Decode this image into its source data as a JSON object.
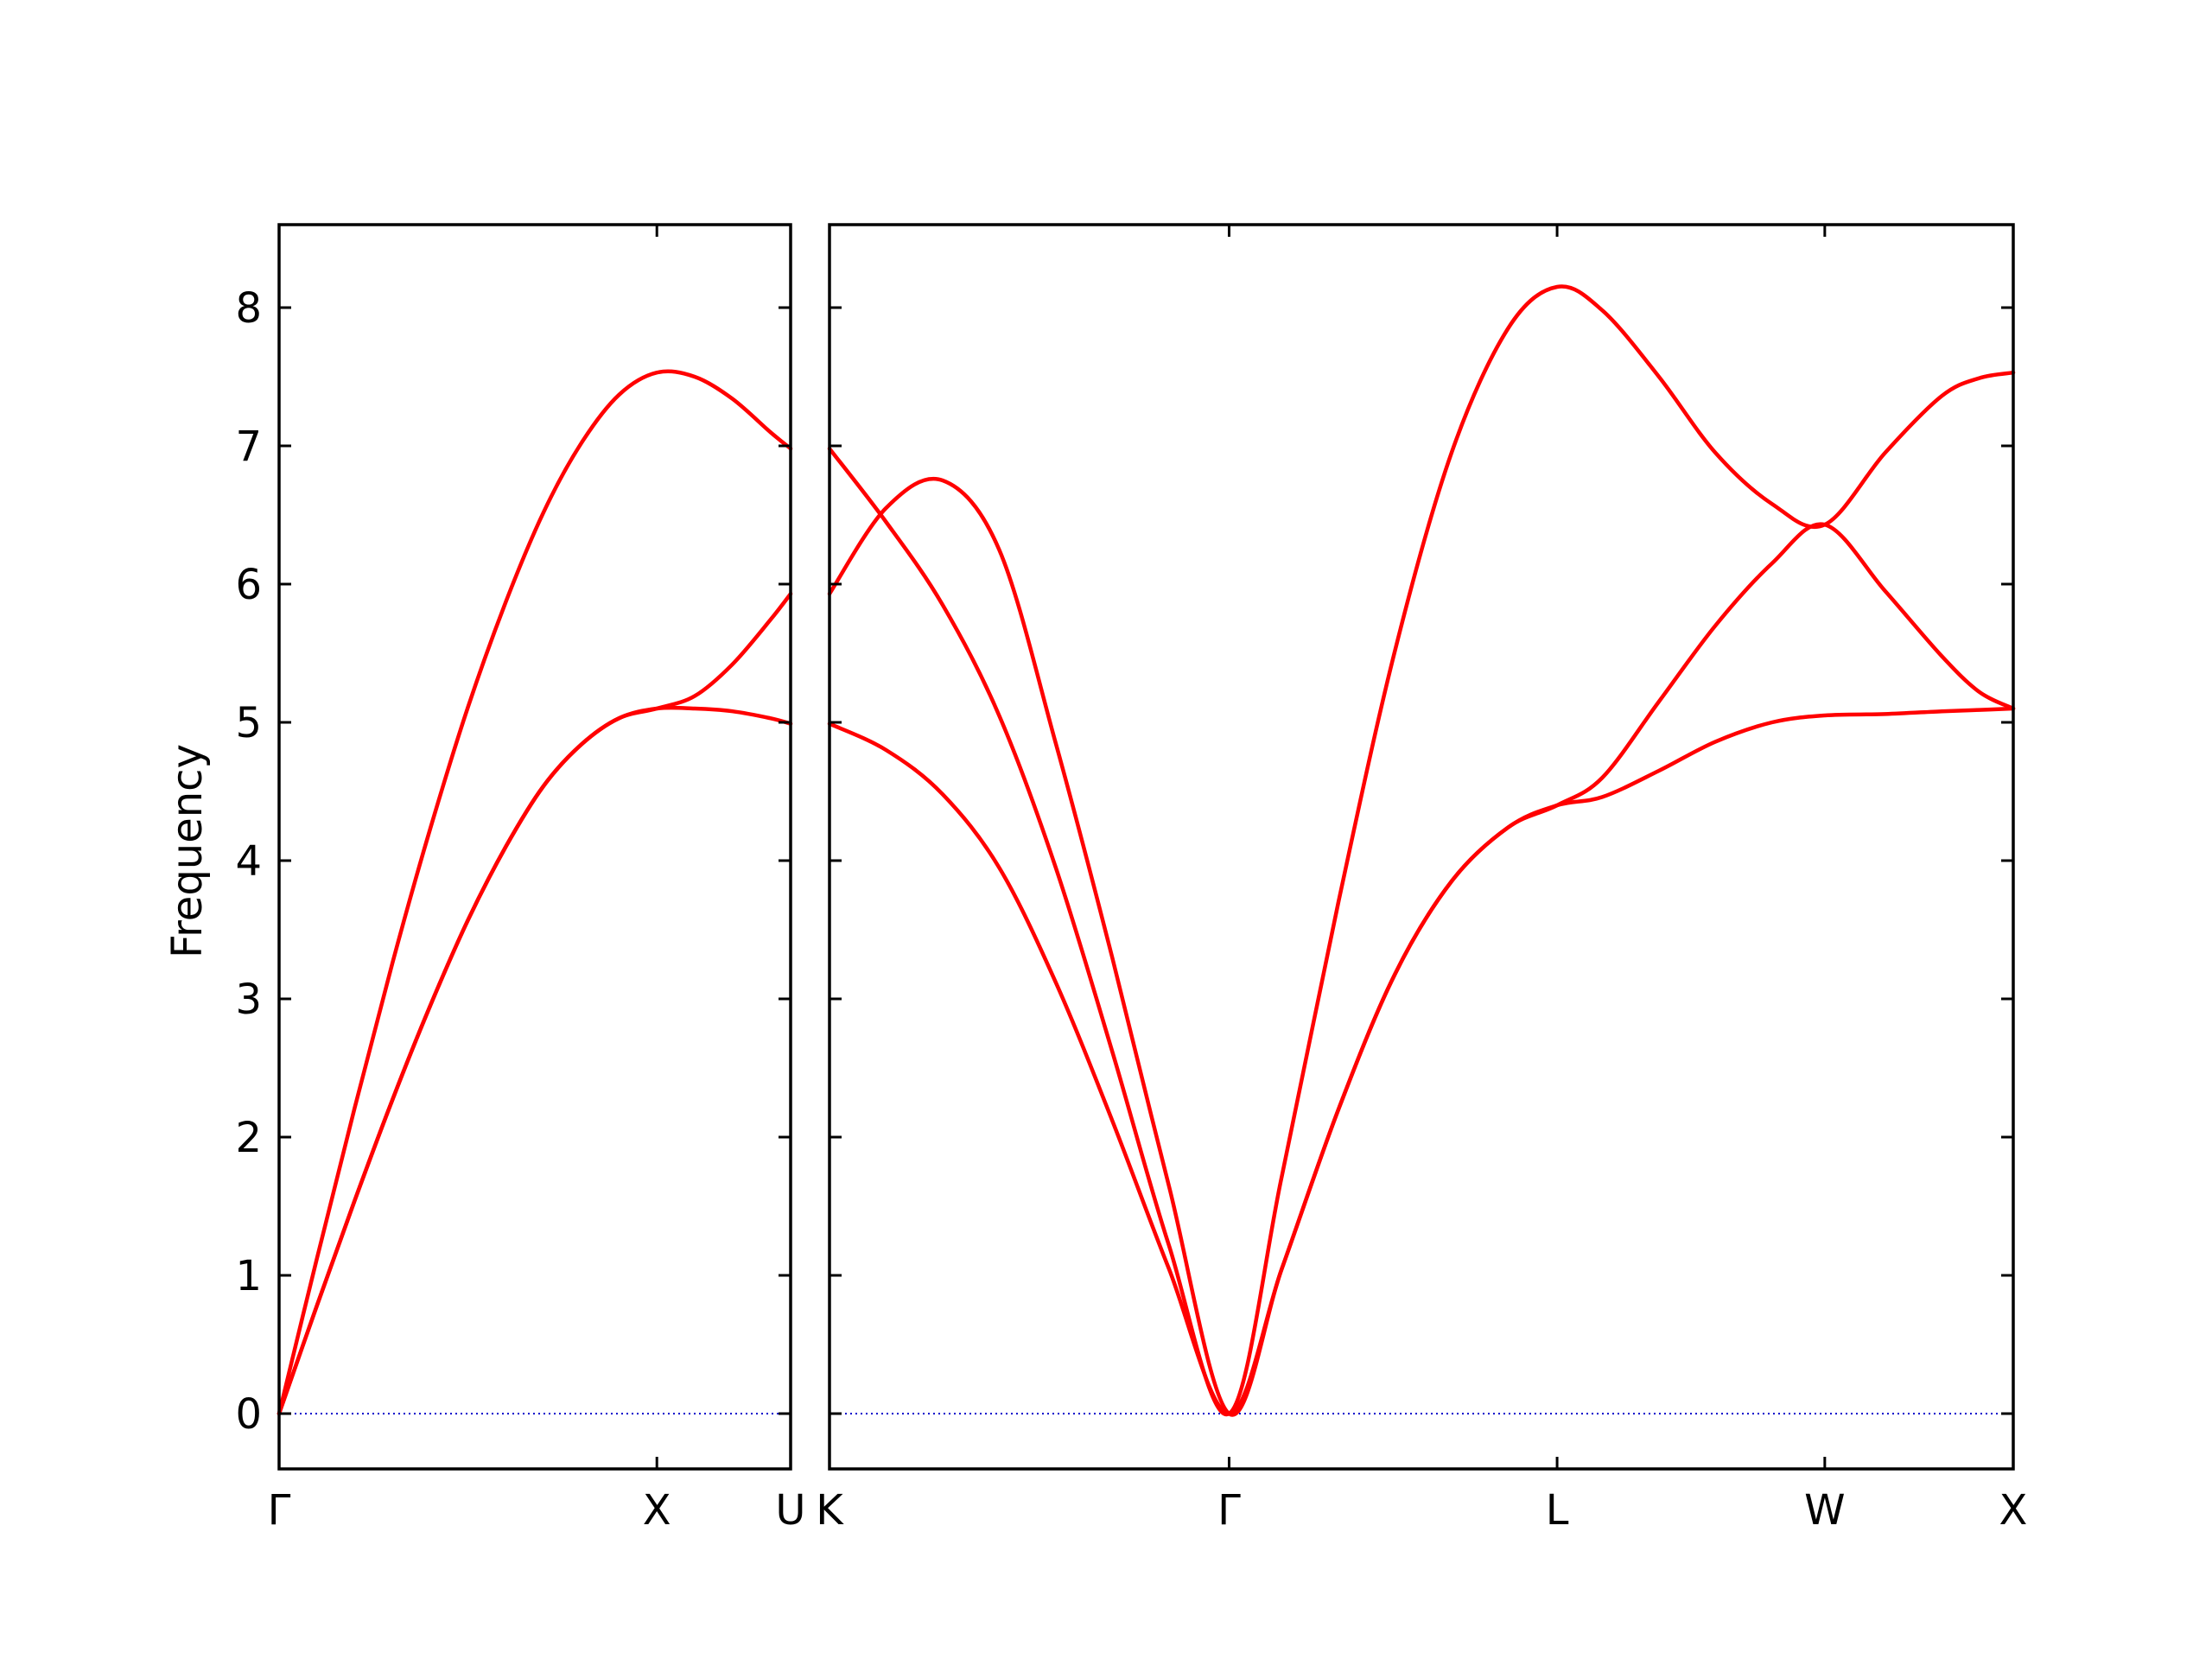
{
  "chart_data": {
    "type": "line",
    "ylabel": "Frequency",
    "ylim": [
      -0.4,
      8.6
    ],
    "yticks": [
      0,
      1,
      2,
      3,
      4,
      5,
      6,
      7,
      8
    ],
    "colors": {
      "band": "#ff0000",
      "zero_line": "#0000cc",
      "axes": "#000000"
    },
    "panels": [
      {
        "id": "left",
        "xlim": [
          0,
          1.354
        ],
        "x_ticks": [
          {
            "x": 0,
            "label": "Γ"
          },
          {
            "x": 1.0,
            "label": "X"
          },
          {
            "x": 1.354,
            "label": "U"
          }
        ],
        "series": [
          {
            "x": [
              0,
              0.1,
              0.2,
              0.3,
              0.4,
              0.5,
              0.6,
              0.7,
              0.8,
              0.9,
              1.0,
              1.1,
              1.2,
              1.3,
              1.354
            ],
            "y": [
              0,
              1.12,
              2.21,
              3.26,
              4.23,
              5.11,
              5.87,
              6.52,
              7.02,
              7.37,
              7.53,
              7.5,
              7.34,
              7.1,
              6.98
            ]
          },
          {
            "x": [
              0,
              0.1,
              0.2,
              0.3,
              0.4,
              0.5,
              0.6,
              0.7,
              0.8,
              0.9,
              1.0,
              1.1,
              1.2,
              1.3,
              1.354
            ],
            "y": [
              0,
              0.78,
              1.54,
              2.27,
              2.95,
              3.57,
              4.1,
              4.54,
              4.84,
              5.03,
              5.1,
              5.19,
              5.42,
              5.74,
              5.93
            ]
          },
          {
            "x": [
              0,
              0.1,
              0.2,
              0.3,
              0.4,
              0.5,
              0.6,
              0.7,
              0.8,
              0.9,
              1.0,
              1.1,
              1.2,
              1.3,
              1.354
            ],
            "y": [
              0,
              0.78,
              1.54,
              2.27,
              2.95,
              3.57,
              4.1,
              4.54,
              4.84,
              5.03,
              5.1,
              5.1,
              5.08,
              5.03,
              4.99
            ]
          }
        ]
      },
      {
        "id": "right",
        "xlim": [
          0,
          3.14
        ],
        "x_ticks": [
          {
            "x": 0,
            "label": "K"
          },
          {
            "x": 1.06,
            "label": "Γ"
          },
          {
            "x": 1.93,
            "label": "L"
          },
          {
            "x": 2.64,
            "label": "W"
          },
          {
            "x": 3.14,
            "label": "X"
          }
        ],
        "series": [
          {
            "x": [
              0,
              0.15,
              0.3,
              0.45,
              0.6,
              0.75,
              0.9,
              1.06,
              1.2,
              1.35,
              1.5,
              1.65,
              1.8,
              1.93,
              2.05,
              2.2,
              2.35,
              2.5,
              2.64,
              2.8,
              2.95,
              3.05,
              3.14
            ],
            "y": [
              6.98,
              6.45,
              5.85,
              5.05,
              3.95,
              2.62,
              1.22,
              0,
              1.72,
              3.7,
              5.52,
              6.95,
              7.85,
              8.15,
              7.98,
              7.5,
              6.95,
              6.58,
              6.43,
              6.95,
              7.36,
              7.49,
              7.53
            ]
          },
          {
            "x": [
              0,
              0.15,
              0.3,
              0.45,
              0.6,
              0.75,
              0.9,
              1.06,
              1.2,
              1.35,
              1.5,
              1.65,
              1.8,
              1.93,
              2.05,
              2.2,
              2.35,
              2.5,
              2.64,
              2.8,
              2.95,
              3.05,
              3.14
            ],
            "y": [
              5.93,
              6.55,
              6.75,
              6.25,
              4.85,
              3.3,
              1.65,
              0,
              1.05,
              2.2,
              3.18,
              3.85,
              4.24,
              4.4,
              4.6,
              5.15,
              5.7,
              6.15,
              6.43,
              5.95,
              5.48,
              5.22,
              5.1
            ]
          },
          {
            "x": [
              0,
              0.15,
              0.3,
              0.45,
              0.6,
              0.75,
              0.9,
              1.06,
              1.2,
              1.35,
              1.5,
              1.65,
              1.8,
              1.93,
              2.05,
              2.2,
              2.35,
              2.5,
              2.64,
              2.8,
              2.95,
              3.05,
              3.14
            ],
            "y": [
              4.99,
              4.8,
              4.48,
              3.95,
              3.12,
              2.12,
              1.05,
              0,
              1.05,
              2.2,
              3.18,
              3.85,
              4.24,
              4.4,
              4.46,
              4.65,
              4.86,
              5.0,
              5.05,
              5.06,
              5.08,
              5.09,
              5.1
            ]
          }
        ]
      }
    ]
  }
}
